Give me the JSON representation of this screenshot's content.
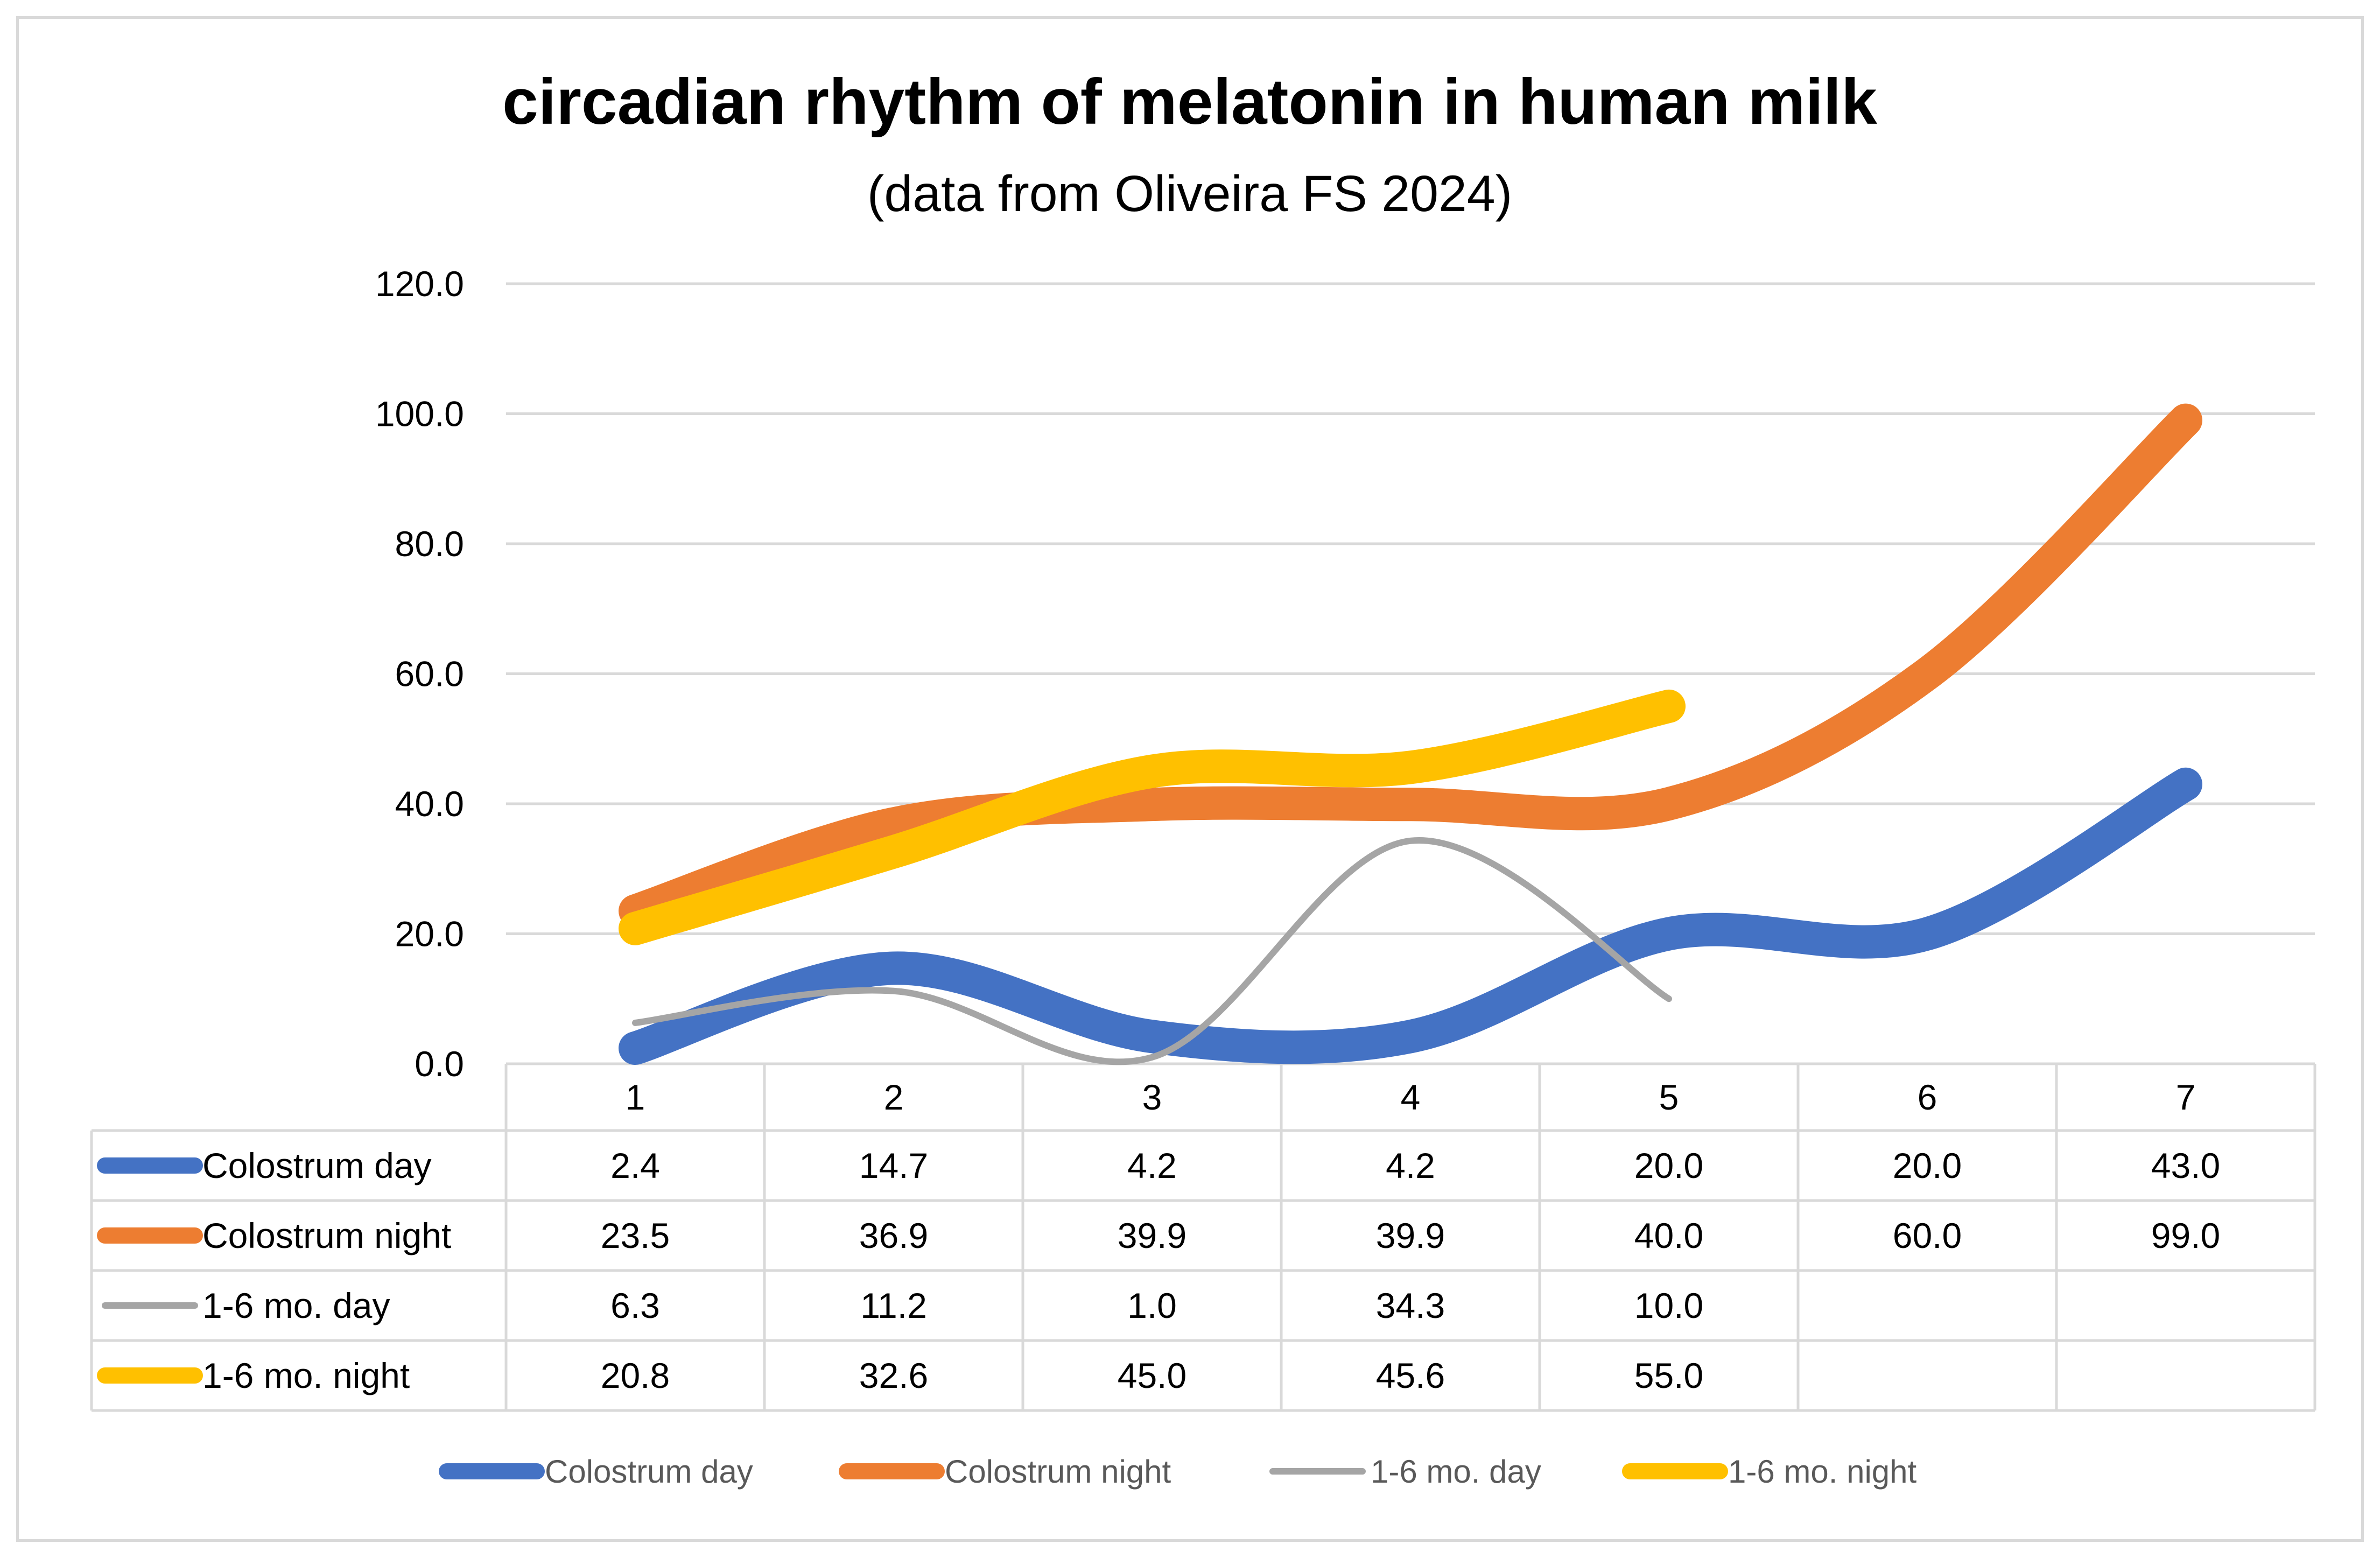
{
  "chart_data": {
    "type": "line",
    "title": "circadian rhythm of melatonin in human milk",
    "subtitle": "(data from Oliveira FS 2024)",
    "xlabel": "",
    "ylabel": "",
    "categories": [
      "1",
      "2",
      "3",
      "4",
      "5",
      "6",
      "7"
    ],
    "ylim": [
      0,
      120
    ],
    "yticks": [
      "0.0",
      "20.0",
      "40.0",
      "60.0",
      "80.0",
      "100.0",
      "120.0"
    ],
    "grid": true,
    "smooth": true,
    "legend_position": "bottom",
    "data_table": true,
    "series": [
      {
        "name": "Colostrum day",
        "color": "#4472c4",
        "values": [
          2.4,
          14.7,
          4.2,
          4.2,
          20.0,
          20.0,
          43.0
        ],
        "labels": [
          "2.4",
          "14.7",
          "4.2",
          "4.2",
          "20.0",
          "20.0",
          "43.0"
        ],
        "weight": "thick"
      },
      {
        "name": "Colostrum night",
        "color": "#ed7d31",
        "values": [
          23.5,
          36.9,
          39.9,
          39.9,
          40.0,
          60.0,
          99.0
        ],
        "labels": [
          "23.5",
          "36.9",
          "39.9",
          "39.9",
          "40.0",
          "60.0",
          "99.0"
        ],
        "weight": "thick"
      },
      {
        "name": "1-6 mo. day",
        "color": "#a5a5a5",
        "values": [
          6.3,
          11.2,
          1.0,
          34.3,
          10.0,
          null,
          null
        ],
        "labels": [
          "6.3",
          "11.2",
          "1.0",
          "34.3",
          "10.0",
          "",
          ""
        ],
        "weight": "thin"
      },
      {
        "name": "1-6 mo. night",
        "color": "#ffc000",
        "values": [
          20.8,
          32.6,
          45.0,
          45.6,
          55.0,
          null,
          null
        ],
        "labels": [
          "20.8",
          "32.6",
          "45.0",
          "45.6",
          "55.0",
          "",
          ""
        ],
        "weight": "thick"
      }
    ]
  },
  "colors": {
    "gridline": "#d9d9d9",
    "table_border": "#d9d9d9",
    "frame_border": "#d9d9d9"
  }
}
